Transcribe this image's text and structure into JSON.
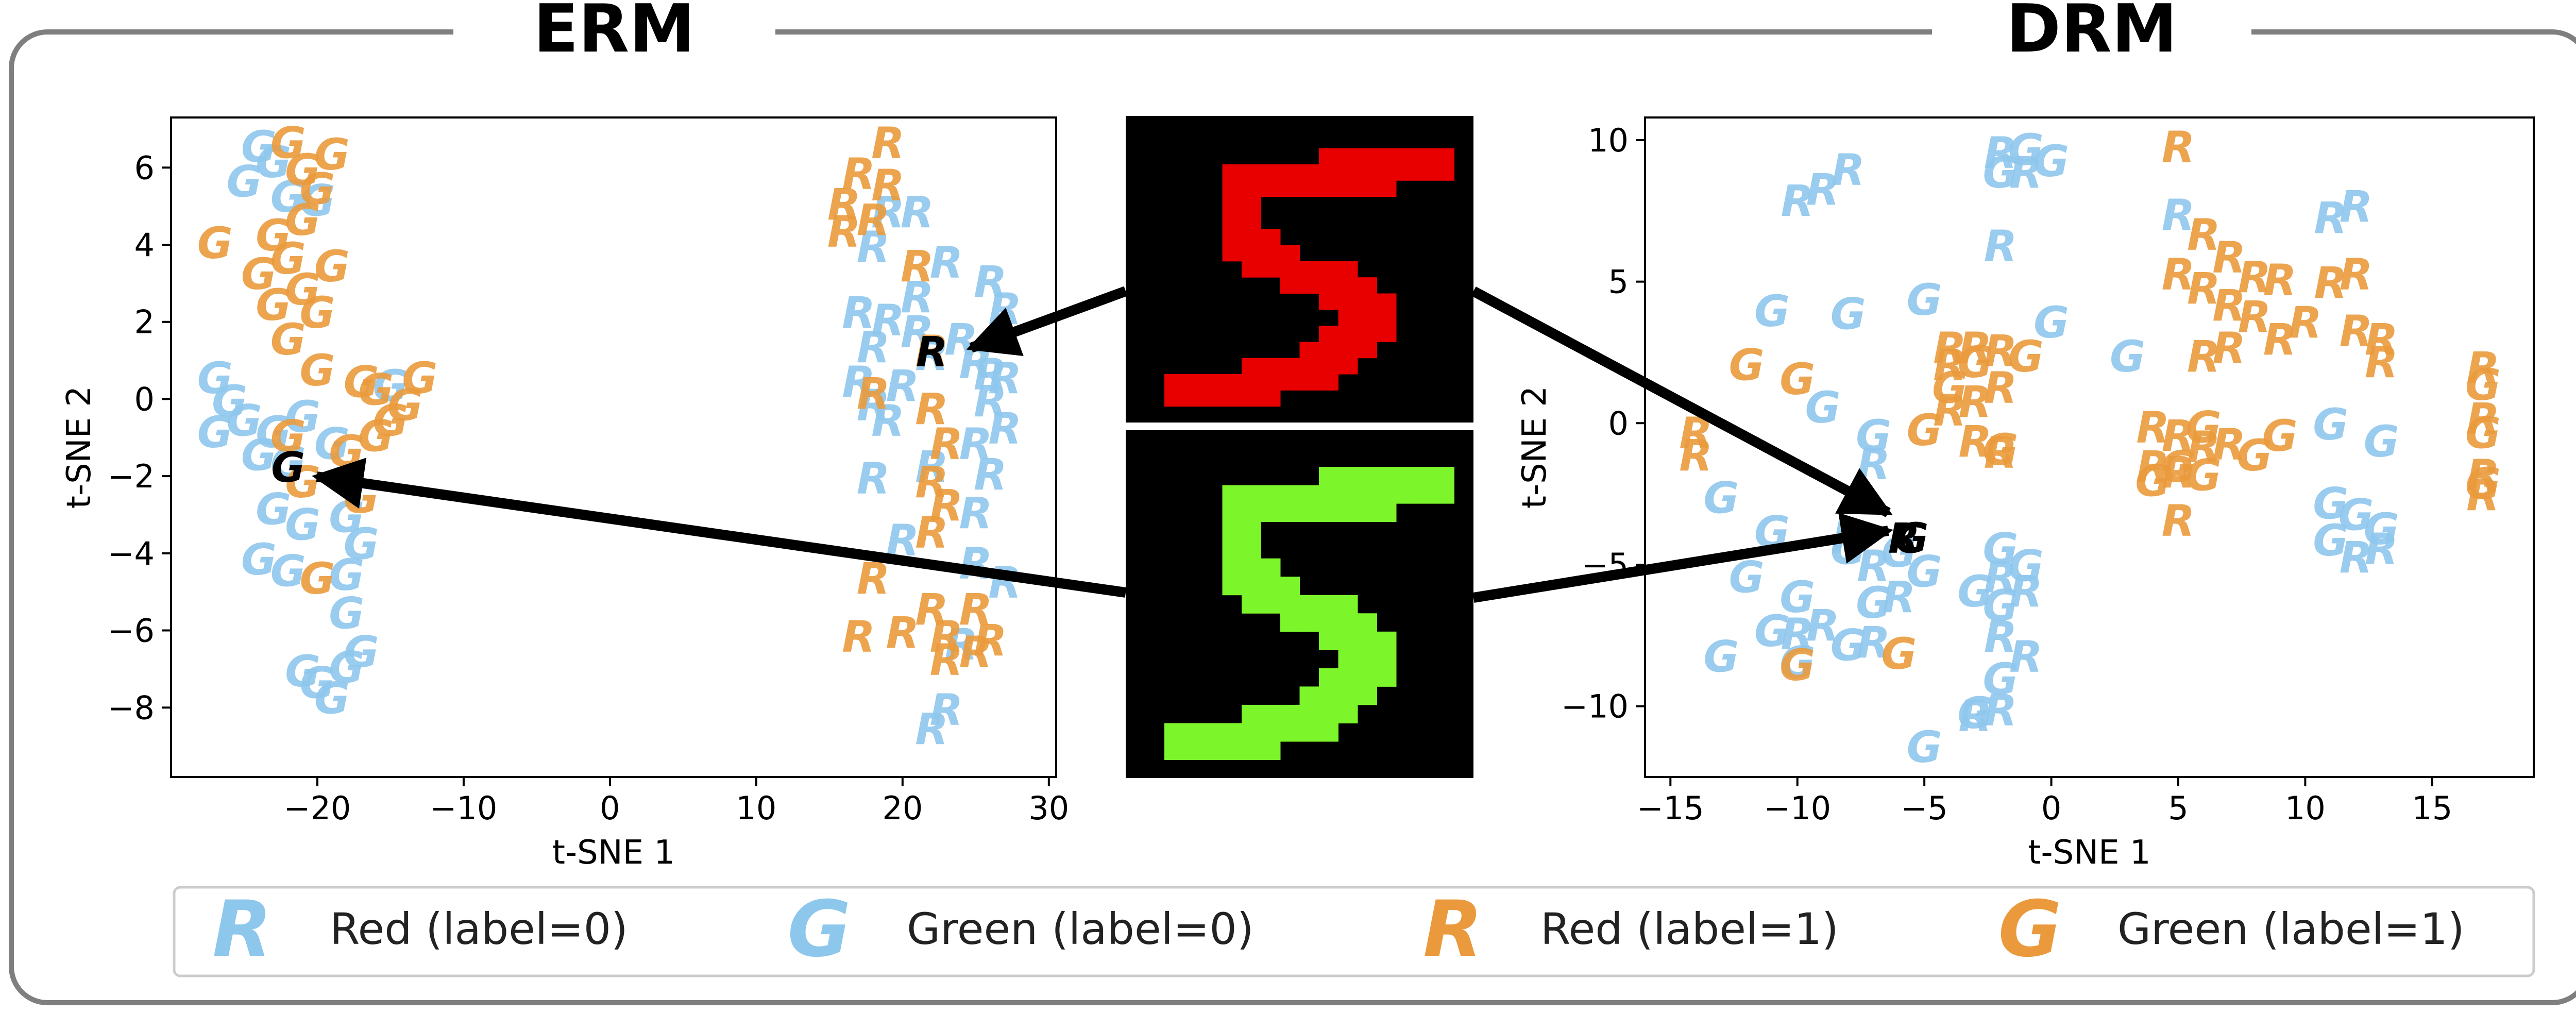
{
  "panels": {
    "left_title": "ERM",
    "right_title": "DRM"
  },
  "digit_images": {
    "top": {
      "label": "red-digit-5",
      "fg": "#e80000",
      "bg": "#000000"
    },
    "bottom": {
      "label": "green-digit-5",
      "fg": "#7cf52b",
      "bg": "#000000"
    }
  },
  "legend": {
    "items": [
      {
        "glyph": "R",
        "label": "Red (label=0)",
        "color": "#8ec7ec"
      },
      {
        "glyph": "G",
        "label": "Green (label=0)",
        "color": "#8ec7ec"
      },
      {
        "glyph": "R",
        "label": "Red (label=1)",
        "color": "#ea9a3c"
      },
      {
        "glyph": "G",
        "label": "Green (label=1)",
        "color": "#ea9a3c"
      }
    ]
  },
  "colors": {
    "label0": "#8ec7ec",
    "label1": "#ea9a3c",
    "highlight": "#000000",
    "frame": "#7f7f7f"
  },
  "chart_data": [
    {
      "type": "scatter",
      "title": "ERM",
      "xlabel": "t-SNE 1",
      "ylabel": "t-SNE 2",
      "xlim": [
        -30,
        30.5
      ],
      "ylim": [
        -9.8,
        7.3
      ],
      "xticks": [
        -20,
        -10,
        0,
        10,
        20,
        30
      ],
      "yticks": [
        -8,
        -6,
        -4,
        -2,
        0,
        2,
        4,
        6
      ],
      "series": [
        {
          "glyph": "R",
          "label": 0,
          "points": [
            [
              19,
              4.8
            ],
            [
              21,
              4.8
            ],
            [
              18,
              3.9
            ],
            [
              23,
              3.5
            ],
            [
              26,
              3
            ],
            [
              27,
              2.3
            ],
            [
              17,
              2.2
            ],
            [
              19,
              2
            ],
            [
              21,
              1.7
            ],
            [
              24,
              1.5
            ],
            [
              18,
              1.3
            ],
            [
              22,
              1.1
            ],
            [
              25,
              0.9
            ],
            [
              27,
              0.5
            ],
            [
              17,
              0.4
            ],
            [
              20,
              0.3
            ],
            [
              18,
              -0.2
            ],
            [
              26,
              -0.1
            ],
            [
              19,
              -0.6
            ],
            [
              27,
              -0.8
            ],
            [
              25,
              -1.2
            ],
            [
              22,
              -1.8
            ],
            [
              18,
              -2.1
            ],
            [
              26,
              -2
            ],
            [
              25,
              -3
            ],
            [
              20,
              -3.7
            ],
            [
              25,
              -4.3
            ],
            [
              27,
              -4.8
            ],
            [
              24,
              -6.4
            ],
            [
              23,
              -8.1
            ],
            [
              22,
              -8.6
            ],
            [
              26,
              0.6
            ],
            [
              21,
              2.6
            ]
          ]
        },
        {
          "glyph": "G",
          "label": 0,
          "points": [
            [
              -24,
              6.5
            ],
            [
              -23,
              6.1
            ],
            [
              -25,
              5.6
            ],
            [
              -22,
              5.2
            ],
            [
              -20,
              5.1
            ],
            [
              -27,
              0.5
            ],
            [
              -26,
              -0.1
            ],
            [
              -25,
              -0.6
            ],
            [
              -23,
              -0.9
            ],
            [
              -21,
              -0.5
            ],
            [
              -27,
              -0.9
            ],
            [
              -24,
              -1.5
            ],
            [
              -22,
              -1.7
            ],
            [
              -19,
              -1.2
            ],
            [
              -23,
              -2.9
            ],
            [
              -21,
              -3.3
            ],
            [
              -18,
              -3.1
            ],
            [
              -24,
              -4.2
            ],
            [
              -22,
              -4.5
            ],
            [
              -18,
              -4.6
            ],
            [
              -17,
              -3.8
            ],
            [
              -18,
              -5.6
            ],
            [
              -21,
              -7.1
            ],
            [
              -20,
              -7.4
            ],
            [
              -18,
              -7.0
            ],
            [
              -17,
              -6.6
            ],
            [
              -19,
              -7.8
            ],
            [
              -15,
              0.3
            ]
          ]
        },
        {
          "glyph": "R",
          "label": 1,
          "points": [
            [
              19,
              6.6
            ],
            [
              17,
              5.8
            ],
            [
              19,
              5.5
            ],
            [
              16,
              5.0
            ],
            [
              18,
              4.6
            ],
            [
              16,
              4.3
            ],
            [
              21,
              3.4
            ],
            [
              22,
              1.2
            ],
            [
              18,
              0.1
            ],
            [
              22,
              -0.3
            ],
            [
              23,
              -1.2
            ],
            [
              22,
              -2.2
            ],
            [
              23,
              -2.8
            ],
            [
              22,
              -3.5
            ],
            [
              18,
              -4.7
            ],
            [
              22,
              -5.5
            ],
            [
              25,
              -5.5
            ],
            [
              20,
              -6.1
            ],
            [
              23,
              -6.2
            ],
            [
              17,
              -6.2
            ],
            [
              26,
              -6.3
            ],
            [
              25,
              -6.6
            ],
            [
              23,
              -6.8
            ]
          ]
        },
        {
          "glyph": "G",
          "label": 1,
          "points": [
            [
              -22,
              6.6
            ],
            [
              -21,
              5.9
            ],
            [
              -19,
              6.3
            ],
            [
              -20,
              5.4
            ],
            [
              -21,
              4.6
            ],
            [
              -23,
              4.2
            ],
            [
              -27,
              4.0
            ],
            [
              -22,
              3.6
            ],
            [
              -19,
              3.4
            ],
            [
              -24,
              3.2
            ],
            [
              -21,
              2.8
            ],
            [
              -23,
              2.4
            ],
            [
              -20,
              2.2
            ],
            [
              -22,
              1.5
            ],
            [
              -20,
              0.7
            ],
            [
              -17,
              0.4
            ],
            [
              -16,
              0.2
            ],
            [
              -14,
              -0.2
            ],
            [
              -16,
              -1.0
            ],
            [
              -18,
              -1.4
            ],
            [
              -21,
              -2.2
            ],
            [
              -17,
              -2.6
            ],
            [
              -20,
              -4.7
            ],
            [
              -15,
              -0.6
            ],
            [
              -13,
              0.5
            ],
            [
              -22,
              -1.0
            ]
          ]
        }
      ],
      "highlighted": [
        {
          "glyph": "R",
          "x": 22,
          "y": 1.2
        },
        {
          "glyph": "G",
          "x": -22,
          "y": -1.8
        }
      ]
    },
    {
      "type": "scatter",
      "title": "DRM",
      "xlabel": "t-SNE 1",
      "ylabel": "t-SNE 2",
      "xlim": [
        -16,
        19
      ],
      "ylim": [
        -12.5,
        10.8
      ],
      "xticks": [
        -15,
        -10,
        -5,
        0,
        5,
        10,
        15
      ],
      "yticks": [
        -10,
        -5,
        0,
        5,
        10
      ],
      "series": [
        {
          "glyph": "R",
          "label": 0,
          "points": [
            [
              -8,
              8.9
            ],
            [
              -9,
              8.2
            ],
            [
              -10,
              7.8
            ],
            [
              -2,
              9.5
            ],
            [
              -1,
              8.8
            ],
            [
              -2,
              6.2
            ],
            [
              5,
              7.3
            ],
            [
              11,
              7.2
            ],
            [
              12,
              7.6
            ],
            [
              -7,
              -1.5
            ],
            [
              -8,
              -4.1
            ],
            [
              -7,
              -5.1
            ],
            [
              -6,
              -6.2
            ],
            [
              -2,
              -5.5
            ],
            [
              -1,
              -6.0
            ],
            [
              -2,
              -7.6
            ],
            [
              -1,
              -8.3
            ],
            [
              -3,
              -10.4
            ],
            [
              -2,
              -10.2
            ],
            [
              12,
              -4.8
            ],
            [
              13,
              -4.5
            ],
            [
              -9,
              -7.2
            ],
            [
              -10,
              -7.5
            ],
            [
              -7,
              -7.8
            ]
          ]
        },
        {
          "glyph": "G",
          "label": 0,
          "points": [
            [
              -1,
              9.6
            ],
            [
              0,
              9.2
            ],
            [
              -2,
              8.8
            ],
            [
              -5,
              4.3
            ],
            [
              -8,
              3.8
            ],
            [
              -11,
              3.9
            ],
            [
              0,
              3.5
            ],
            [
              3,
              2.3
            ],
            [
              -9,
              0.5
            ],
            [
              -7,
              -0.5
            ],
            [
              -13,
              -2.7
            ],
            [
              -11,
              -3.9
            ],
            [
              -8,
              -4.5
            ],
            [
              -6,
              -4.6
            ],
            [
              -5,
              -5.3
            ],
            [
              -12,
              -5.5
            ],
            [
              -10,
              -6.2
            ],
            [
              -7,
              -6.4
            ],
            [
              -3,
              -6.0
            ],
            [
              -2,
              -4.5
            ],
            [
              -1,
              -5.1
            ],
            [
              -13,
              -8.3
            ],
            [
              -11,
              -7.4
            ],
            [
              -10,
              -8.5
            ],
            [
              -8,
              -7.9
            ],
            [
              -2,
              -9.1
            ],
            [
              -3,
              -10.3
            ],
            [
              -5,
              -11.5
            ],
            [
              11,
              -0.1
            ],
            [
              13,
              -0.7
            ],
            [
              11,
              -2.9
            ],
            [
              12,
              -3.3
            ],
            [
              13,
              -3.8
            ],
            [
              11,
              -4.2
            ],
            [
              -2,
              -6.5
            ]
          ]
        },
        {
          "glyph": "R",
          "label": 1,
          "points": [
            [
              5,
              9.7
            ],
            [
              6,
              6.6
            ],
            [
              7,
              5.8
            ],
            [
              5,
              5.2
            ],
            [
              6,
              4.7
            ],
            [
              8,
              5.1
            ],
            [
              9,
              5.0
            ],
            [
              11,
              4.9
            ],
            [
              12,
              5.2
            ],
            [
              7,
              4.1
            ],
            [
              8,
              3.7
            ],
            [
              10,
              3.5
            ],
            [
              12,
              3.2
            ],
            [
              13,
              2.9
            ],
            [
              9,
              2.9
            ],
            [
              7,
              2.6
            ],
            [
              6,
              2.3
            ],
            [
              13,
              2.1
            ],
            [
              -4,
              2.6
            ],
            [
              -3,
              2.6
            ],
            [
              -2,
              2.5
            ],
            [
              -4,
              2.0
            ],
            [
              -2,
              1.2
            ],
            [
              -3,
              0.7
            ],
            [
              -4,
              0.4
            ],
            [
              -3,
              -0.7
            ],
            [
              -2,
              -1.1
            ],
            [
              4,
              -0.2
            ],
            [
              5,
              -0.5
            ],
            [
              6,
              -0.9
            ],
            [
              7,
              -0.8
            ],
            [
              4,
              -1.6
            ],
            [
              5,
              -1.8
            ],
            [
              -14,
              -0.4
            ],
            [
              -14,
              -1.2
            ],
            [
              17,
              1.9
            ],
            [
              17,
              0.1
            ],
            [
              17,
              -1.9
            ],
            [
              17,
              -2.6
            ],
            [
              5,
              -3.5
            ]
          ]
        },
        {
          "glyph": "G",
          "label": 1,
          "points": [
            [
              -12,
              2.0
            ],
            [
              -10,
              1.5
            ],
            [
              -3,
              2.1
            ],
            [
              -1,
              2.3
            ],
            [
              -4,
              1.2
            ],
            [
              -5,
              -0.3
            ],
            [
              -2,
              -1.0
            ],
            [
              5,
              -1.6
            ],
            [
              6,
              -1.9
            ],
            [
              4,
              -2.1
            ],
            [
              6,
              -0.2
            ],
            [
              9,
              -0.5
            ],
            [
              8,
              -1.2
            ],
            [
              -10,
              -8.6
            ],
            [
              -6,
              -8.2
            ],
            [
              17,
              1.3
            ],
            [
              17,
              -0.4
            ],
            [
              17,
              -2.2
            ]
          ]
        }
      ],
      "highlighted": [
        {
          "glyph": "R",
          "x": -5.8,
          "y": -4.1
        },
        {
          "glyph": "G",
          "x": -5.5,
          "y": -4.1
        }
      ]
    }
  ]
}
